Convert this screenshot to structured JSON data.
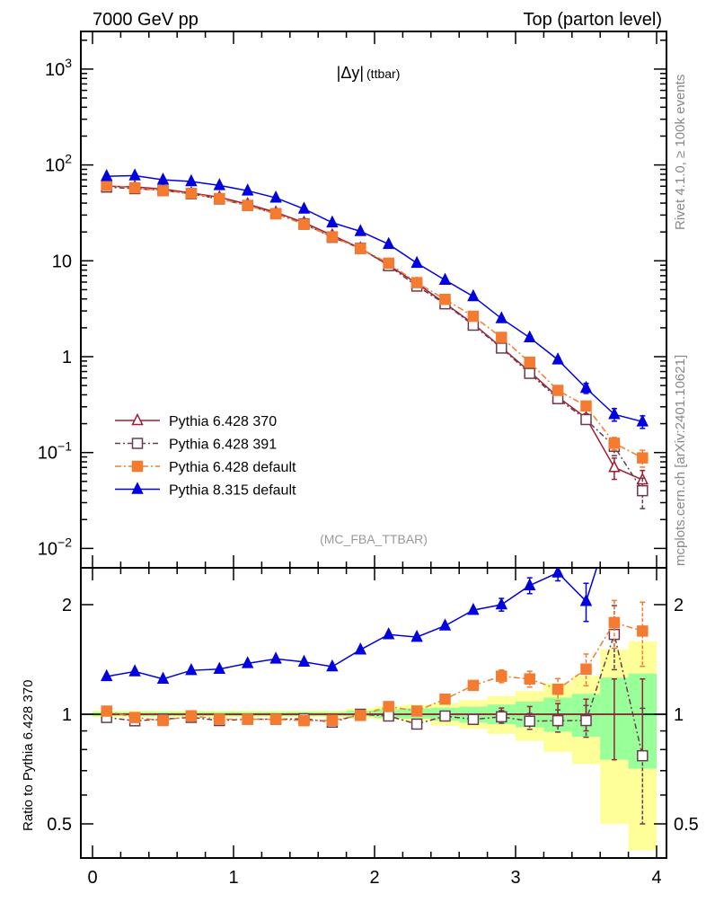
{
  "header": {
    "left": "7000 GeV pp",
    "right": "Top (parton level)"
  },
  "side_text": {
    "rivet": "Rivet 4.1.0, ≥ 100k events",
    "mcplots": "mcplots.cern.ch [arXiv:2401.10621]"
  },
  "chart_data": {
    "type": "line",
    "title": "|Δy| (ttbar)",
    "title_main": "|Δy|",
    "title_sub": "(ttbar)",
    "analysis": "(MC_FBA_TTBAR)",
    "x": [
      0.1,
      0.3,
      0.5,
      0.7,
      0.9,
      1.1,
      1.3,
      1.5,
      1.7,
      1.9,
      2.1,
      2.3,
      2.5,
      2.7,
      2.9,
      3.1,
      3.3,
      3.5,
      3.7,
      3.9
    ],
    "xlim": [
      0,
      4
    ],
    "xticks": [
      "0",
      "1",
      "2",
      "3",
      "4"
    ],
    "ylim_main": [
      0.008,
      2500
    ],
    "yscale_main": "log",
    "yticks_main": [
      {
        "base": "10",
        "exp": "3"
      },
      {
        "base": "10",
        "exp": "2"
      },
      {
        "base": "10",
        "exp": ""
      },
      {
        "base": "1",
        "exp": ""
      },
      {
        "base": "10",
        "exp": "−1"
      },
      {
        "base": "10",
        "exp": "−2"
      }
    ],
    "ratio": {
      "ylabel": "Ratio to Pythia 6.428 370",
      "ylim": [
        0.4,
        2.5
      ],
      "yticks": [
        "2",
        "1",
        "0.5"
      ],
      "reference": "Pythia 6.428 370"
    },
    "legend_position": "bottom-left",
    "series": [
      {
        "name": "Pythia 6.428 370",
        "color": "#a01e32",
        "marker": "open-triangle",
        "dash": "",
        "values": [
          60,
          59,
          56,
          51,
          46,
          39,
          32,
          25,
          18.5,
          13.5,
          9,
          5.8,
          3.6,
          2.2,
          1.25,
          0.7,
          0.38,
          0.23,
          0.07,
          0.052
        ],
        "rel_err": [
          0.01,
          0.01,
          0.01,
          0.01,
          0.01,
          0.01,
          0.01,
          0.01,
          0.01,
          0.01,
          0.02,
          0.02,
          0.03,
          0.03,
          0.04,
          0.05,
          0.07,
          0.1,
          0.25,
          0.25
        ]
      },
      {
        "name": "Pythia 6.428 391",
        "color": "#6b3a4f",
        "marker": "open-square",
        "dash": "6,3,2,3",
        "values": [
          58.8,
          56.6,
          54.3,
          50.0,
          44.2,
          37.8,
          31.0,
          24.3,
          17.6,
          13.5,
          8.9,
          5.45,
          3.56,
          2.13,
          1.23,
          0.67,
          0.365,
          0.221,
          0.116,
          0.04
        ],
        "rel_err": [
          0.01,
          0.01,
          0.01,
          0.01,
          0.01,
          0.01,
          0.01,
          0.01,
          0.01,
          0.01,
          0.02,
          0.02,
          0.03,
          0.03,
          0.04,
          0.05,
          0.07,
          0.1,
          0.2,
          0.35
        ]
      },
      {
        "name": "Pythia 6.428 default",
        "color": "#f47b30",
        "marker": "filled-square",
        "dash": "7,3,2,3",
        "values": [
          61.2,
          57.8,
          53.8,
          50.5,
          44.6,
          37.8,
          31.0,
          24.0,
          17.8,
          13.4,
          9.45,
          5.92,
          3.96,
          2.64,
          1.59,
          0.875,
          0.445,
          0.306,
          0.125,
          0.088
        ],
        "rel_err": [
          0.01,
          0.01,
          0.01,
          0.01,
          0.01,
          0.01,
          0.01,
          0.01,
          0.01,
          0.01,
          0.02,
          0.02,
          0.03,
          0.03,
          0.04,
          0.05,
          0.07,
          0.1,
          0.15,
          0.2
        ]
      },
      {
        "name": "Pythia 8.315 default",
        "color": "#0000e0",
        "marker": "filled-triangle",
        "dash": "",
        "values": [
          76.2,
          77.3,
          70,
          67.3,
          61.2,
          53.8,
          45.4,
          34.8,
          25,
          20.3,
          14.9,
          9.45,
          6.3,
          4.25,
          2.5,
          1.58,
          0.93,
          0.47,
          0.25,
          0.21
        ],
        "rel_err": [
          0.01,
          0.01,
          0.01,
          0.01,
          0.01,
          0.01,
          0.01,
          0.01,
          0.01,
          0.01,
          0.02,
          0.02,
          0.03,
          0.03,
          0.04,
          0.05,
          0.05,
          0.12,
          0.15,
          0.15
        ]
      }
    ],
    "bands": {
      "yellow": {
        "color": "#ffff99",
        "upper": [
          1.023,
          1.023,
          1.023,
          1.023,
          1.023,
          1.023,
          1.023,
          1.023,
          1.023,
          1.037,
          1.053,
          1.061,
          1.073,
          1.094,
          1.121,
          1.158,
          1.215,
          1.274,
          1.508,
          1.587
        ],
        "lower": [
          0.981,
          0.981,
          0.981,
          0.981,
          0.981,
          0.981,
          0.981,
          0.981,
          0.981,
          0.972,
          0.966,
          0.957,
          0.93,
          0.912,
          0.883,
          0.845,
          0.788,
          0.73,
          0.5,
          0.423
        ]
      },
      "green": {
        "color": "#99ff99",
        "upper": [
          1.013,
          1.013,
          1.013,
          1.013,
          1.013,
          1.013,
          1.013,
          1.013,
          1.013,
          1.023,
          1.033,
          1.039,
          1.043,
          1.049,
          1.063,
          1.083,
          1.111,
          1.137,
          1.262,
          1.294
        ],
        "lower": [
          0.989,
          0.989,
          0.989,
          0.989,
          0.989,
          0.989,
          0.989,
          0.989,
          0.989,
          0.985,
          0.976,
          0.972,
          0.961,
          0.948,
          0.939,
          0.921,
          0.895,
          0.867,
          0.75,
          0.709
        ]
      }
    }
  }
}
